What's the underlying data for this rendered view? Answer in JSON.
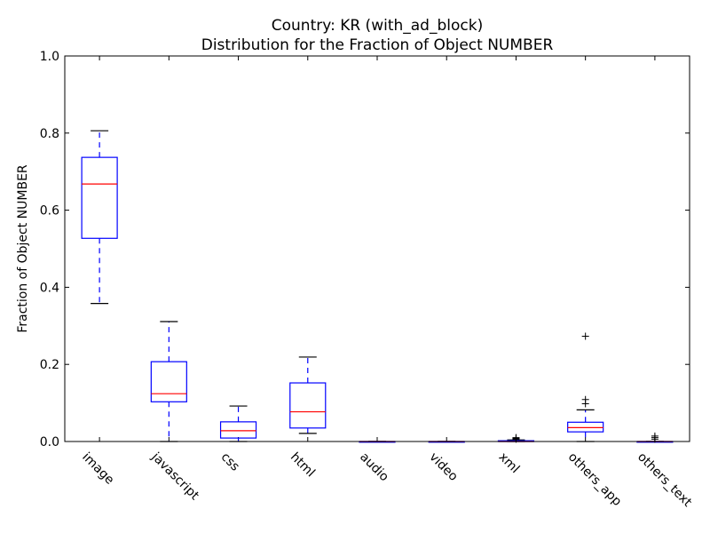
{
  "chart_data": {
    "type": "box",
    "title": "Country: KR  (with_ad_block)",
    "subtitle": "Distribution for the Fraction of Object NUMBER",
    "xlabel": "",
    "ylabel": "Fraction of Object NUMBER",
    "ylim": [
      0.0,
      1.0
    ],
    "yticks": [
      "0.0",
      "0.2",
      "0.4",
      "0.6",
      "0.8",
      "1.0"
    ],
    "categories": [
      "image",
      "javascript",
      "css",
      "html",
      "audio",
      "video",
      "xml",
      "others_app",
      "others_text"
    ],
    "boxes": [
      {
        "name": "image",
        "whisker_low": 0.358,
        "q1": 0.527,
        "median": 0.668,
        "q3": 0.737,
        "whisker_high": 0.806,
        "outliers": []
      },
      {
        "name": "javascript",
        "whisker_low": 0.0,
        "q1": 0.103,
        "median": 0.124,
        "q3": 0.207,
        "whisker_high": 0.311,
        "outliers": []
      },
      {
        "name": "css",
        "whisker_low": 0.0,
        "q1": 0.009,
        "median": 0.028,
        "q3": 0.051,
        "whisker_high": 0.092,
        "outliers": []
      },
      {
        "name": "html",
        "whisker_low": 0.021,
        "q1": 0.035,
        "median": 0.077,
        "q3": 0.152,
        "whisker_high": 0.219,
        "outliers": []
      },
      {
        "name": "audio",
        "whisker_low": 0.0,
        "q1": 0.0,
        "median": 0.0,
        "q3": 0.0,
        "whisker_high": 0.0,
        "outliers": []
      },
      {
        "name": "video",
        "whisker_low": 0.0,
        "q1": 0.0,
        "median": 0.0,
        "q3": 0.0,
        "whisker_high": 0.0,
        "outliers": []
      },
      {
        "name": "xml",
        "whisker_low": 0.0,
        "q1": 0.0,
        "median": 0.0,
        "q3": 0.002,
        "whisker_high": 0.004,
        "outliers": [
          0.006,
          0.008,
          0.01
        ]
      },
      {
        "name": "others_app",
        "whisker_low": 0.0,
        "q1": 0.025,
        "median": 0.036,
        "q3": 0.05,
        "whisker_high": 0.082,
        "outliers": [
          0.098,
          0.109,
          0.273
        ]
      },
      {
        "name": "others_text",
        "whisker_low": 0.0,
        "q1": 0.0,
        "median": 0.0,
        "q3": 0.0,
        "whisker_high": 0.0,
        "outliers": [
          0.006,
          0.01,
          0.014
        ]
      }
    ],
    "colors": {
      "box": "#0000ff",
      "median": "#ff0000",
      "whisker": "#0000ff",
      "cap": "#000000",
      "outlier": "#000000"
    },
    "grid": false,
    "legend": "none"
  }
}
